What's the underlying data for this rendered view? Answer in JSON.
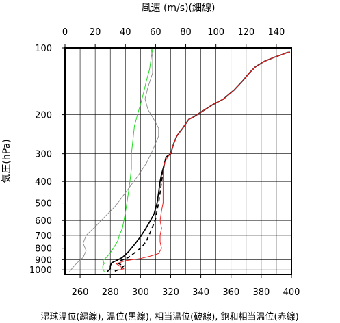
{
  "chart_data": {
    "type": "line",
    "title": "",
    "top_axis": {
      "label": "風速 (m/s)(細線)",
      "range": [
        0,
        150
      ],
      "ticks": [
        0,
        20,
        40,
        60,
        80,
        100,
        120,
        140
      ]
    },
    "bottom_axis": {
      "label": "湿球温位(緑線), 温位(黒線), 相当温位(破線), 飽和相当温位(赤線)",
      "range": [
        250,
        400
      ],
      "ticks": [
        260,
        280,
        300,
        320,
        340,
        360,
        380,
        400
      ]
    },
    "y_axis": {
      "label": "気圧(hPa)",
      "scale": "log",
      "inverted": true,
      "range": [
        1050,
        100
      ],
      "ticks": [
        100,
        200,
        300,
        400,
        500,
        600,
        700,
        800,
        900,
        1000
      ]
    },
    "grid": true,
    "series": [
      {
        "name": "湿球温位(緑線)",
        "color": "#22dd22",
        "style": "solid",
        "axis": "bottom",
        "points": [
          [
            276,
            1020
          ],
          [
            275,
            985
          ],
          [
            275,
            960
          ],
          [
            276,
            935
          ],
          [
            275,
            910
          ],
          [
            277,
            885
          ],
          [
            279,
            855
          ],
          [
            281,
            820
          ],
          [
            283,
            780
          ],
          [
            285,
            740
          ],
          [
            286,
            700
          ],
          [
            288,
            650
          ],
          [
            289,
            600
          ],
          [
            290,
            550
          ],
          [
            291,
            500
          ],
          [
            292,
            450
          ],
          [
            293,
            400
          ],
          [
            294,
            350
          ],
          [
            294,
            300
          ],
          [
            295,
            260
          ],
          [
            296,
            225
          ],
          [
            298,
            200
          ],
          [
            300,
            180
          ],
          [
            302,
            160
          ],
          [
            304,
            140
          ],
          [
            306,
            125
          ],
          [
            307,
            112
          ],
          [
            308,
            101
          ]
        ]
      },
      {
        "name": "温位(黒線)",
        "color": "#000000",
        "style": "solid",
        "axis": "bottom",
        "points": [
          [
            278,
            1020
          ],
          [
            280,
            990
          ],
          [
            280,
            960
          ],
          [
            281,
            930
          ],
          [
            284,
            910
          ],
          [
            288,
            880
          ],
          [
            292,
            830
          ],
          [
            296,
            770
          ],
          [
            300,
            710
          ],
          [
            303,
            660
          ],
          [
            306,
            610
          ],
          [
            309,
            560
          ],
          [
            311,
            500
          ],
          [
            312,
            450
          ],
          [
            313,
            400
          ],
          [
            314,
            370
          ],
          [
            315,
            350
          ],
          [
            317,
            310
          ],
          [
            320,
            300
          ],
          [
            322,
            270
          ],
          [
            324,
            250
          ],
          [
            328,
            230
          ],
          [
            332,
            210
          ],
          [
            335,
            205
          ],
          [
            340,
            195
          ],
          [
            348,
            180
          ],
          [
            355,
            170
          ],
          [
            362,
            155
          ],
          [
            368,
            140
          ],
          [
            372,
            130
          ],
          [
            376,
            122
          ],
          [
            382,
            115
          ],
          [
            389,
            110
          ],
          [
            394,
            107
          ],
          [
            397,
            105
          ],
          [
            399,
            104.5
          ]
        ]
      },
      {
        "name": "相当温位(破線)",
        "color": "#000000",
        "style": "dashed",
        "axis": "bottom",
        "points": [
          [
            283,
            1015
          ],
          [
            287,
            990
          ],
          [
            289,
            960
          ],
          [
            285,
            935
          ],
          [
            287,
            910
          ],
          [
            292,
            880
          ],
          [
            297,
            830
          ],
          [
            301,
            790
          ],
          [
            304,
            740
          ],
          [
            306,
            690
          ],
          [
            308,
            640
          ],
          [
            310,
            590
          ],
          [
            311,
            540
          ],
          [
            312,
            500
          ],
          [
            313,
            450
          ],
          [
            314,
            400
          ],
          [
            315,
            360
          ],
          [
            316,
            330
          ]
        ]
      },
      {
        "name": "飽和相当温位(赤線)",
        "color": "#ee2222",
        "style": "solid",
        "axis": "bottom",
        "points": [
          [
            285,
            1005
          ],
          [
            289,
            990
          ],
          [
            284,
            940
          ],
          [
            290,
            910
          ],
          [
            300,
            890
          ],
          [
            306,
            870
          ],
          [
            312,
            845
          ],
          [
            314,
            800
          ],
          [
            313,
            750
          ],
          [
            313,
            700
          ],
          [
            314,
            650
          ],
          [
            313,
            600
          ],
          [
            314,
            540
          ],
          [
            315,
            500
          ],
          [
            315,
            450
          ],
          [
            315,
            400
          ],
          [
            315,
            360
          ],
          [
            316,
            330
          ],
          [
            318,
            310
          ],
          [
            320,
            300
          ],
          [
            322,
            270
          ],
          [
            324,
            250
          ],
          [
            328,
            230
          ],
          [
            332,
            210
          ],
          [
            335,
            205
          ],
          [
            340,
            195
          ],
          [
            348,
            180
          ],
          [
            355,
            170
          ],
          [
            362,
            155
          ],
          [
            368,
            140
          ],
          [
            372,
            130
          ],
          [
            376,
            122
          ],
          [
            382,
            115
          ],
          [
            389,
            110
          ],
          [
            394,
            107
          ],
          [
            397,
            105
          ],
          [
            399,
            104.5
          ]
        ]
      },
      {
        "name": "風速(細線)",
        "color": "#888888",
        "style": "solid",
        "axis": "top",
        "points": [
          [
            3,
            1020
          ],
          [
            5,
            980
          ],
          [
            8,
            930
          ],
          [
            12,
            880
          ],
          [
            14,
            820
          ],
          [
            12,
            760
          ],
          [
            14,
            700
          ],
          [
            20,
            640
          ],
          [
            26,
            580
          ],
          [
            33,
            520
          ],
          [
            40,
            450
          ],
          [
            48,
            380
          ],
          [
            54,
            330
          ],
          [
            58,
            290
          ],
          [
            62,
            250
          ],
          [
            62,
            230
          ],
          [
            58,
            205
          ],
          [
            55,
            190
          ],
          [
            53,
            170
          ],
          [
            55,
            150
          ],
          [
            58,
            130
          ],
          [
            58,
            110
          ],
          [
            57,
            100
          ]
        ]
      }
    ]
  }
}
